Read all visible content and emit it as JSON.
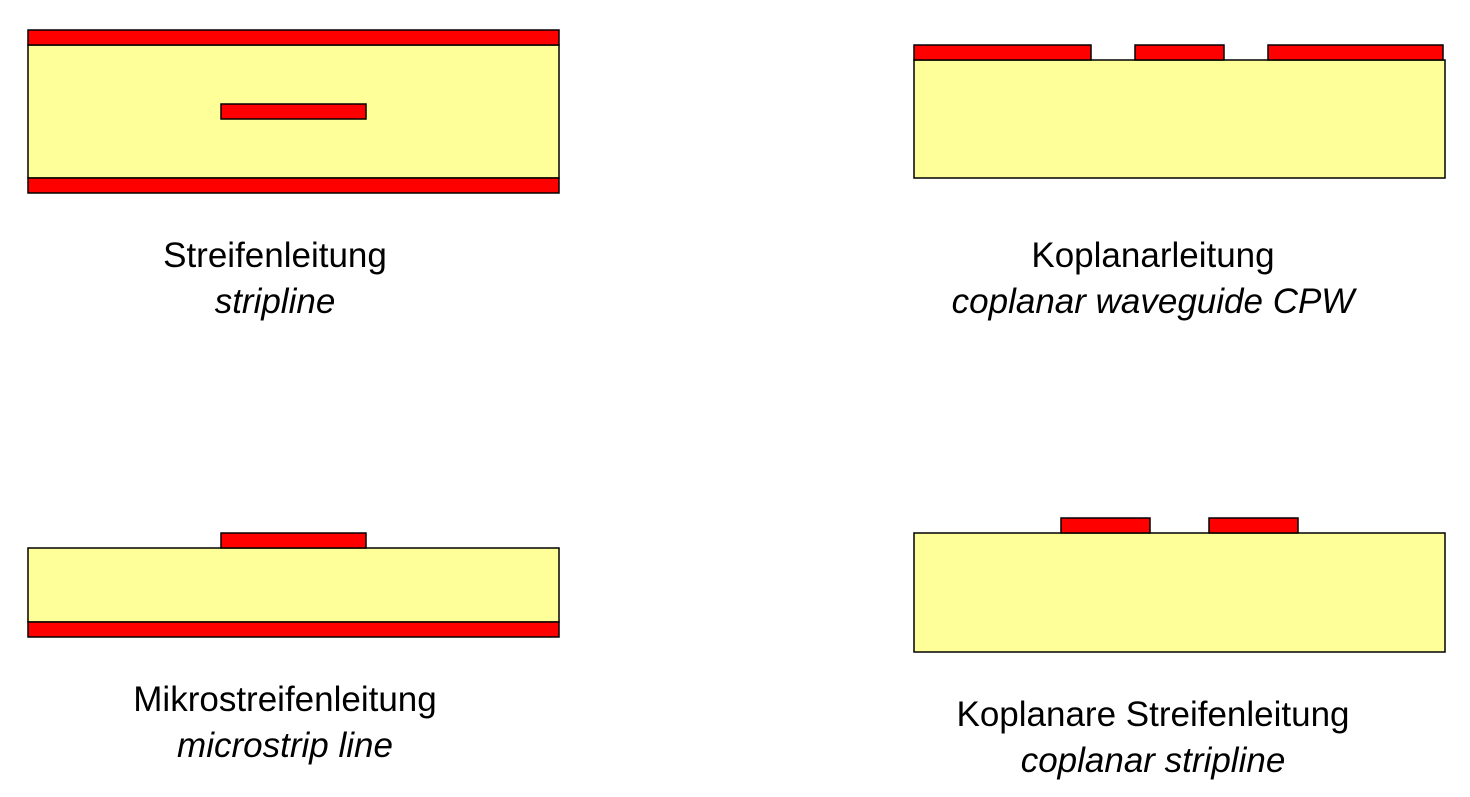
{
  "colors": {
    "dielectric": "#ffff99",
    "conductor": "#ff0000",
    "outline": "#000000",
    "background": "#ffffff"
  },
  "panels": [
    {
      "id": "stripline",
      "caption_de": "Streifenleitung",
      "caption_en": "stripline"
    },
    {
      "id": "cpw",
      "caption_de": "Koplanarleitung",
      "caption_en": "coplanar waveguide CPW"
    },
    {
      "id": "microstrip",
      "caption_de": "Mikrostreifenleitung",
      "caption_en": "microstrip line"
    },
    {
      "id": "cps",
      "caption_de": "Koplanare Streifenleitung",
      "caption_en": "coplanar stripline"
    }
  ]
}
